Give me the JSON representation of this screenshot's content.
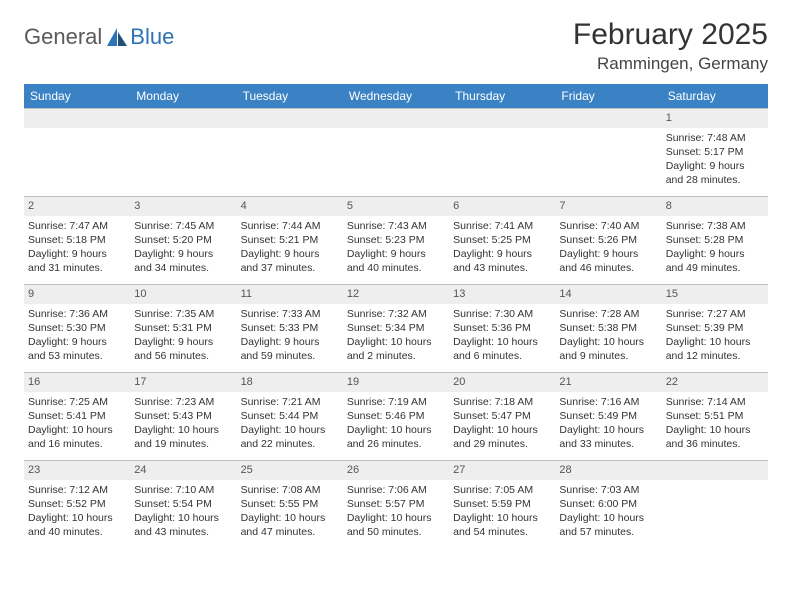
{
  "logo": {
    "general": "General",
    "blue": "Blue"
  },
  "title": "February 2025",
  "location": "Rammingen, Germany",
  "colors": {
    "header_bg": "#3b82c4",
    "header_text": "#ffffff",
    "daynum_bg": "#eeeeee",
    "border": "#bfbfbf",
    "text": "#333333",
    "logo_gray": "#5a5a5a",
    "logo_blue": "#2e74b5"
  },
  "weekdays": [
    "Sunday",
    "Monday",
    "Tuesday",
    "Wednesday",
    "Thursday",
    "Friday",
    "Saturday"
  ],
  "weeks": [
    [
      {
        "n": "",
        "lines": []
      },
      {
        "n": "",
        "lines": []
      },
      {
        "n": "",
        "lines": []
      },
      {
        "n": "",
        "lines": []
      },
      {
        "n": "",
        "lines": []
      },
      {
        "n": "",
        "lines": []
      },
      {
        "n": "1",
        "lines": [
          "Sunrise: 7:48 AM",
          "Sunset: 5:17 PM",
          "Daylight: 9 hours and 28 minutes."
        ]
      }
    ],
    [
      {
        "n": "2",
        "lines": [
          "Sunrise: 7:47 AM",
          "Sunset: 5:18 PM",
          "Daylight: 9 hours and 31 minutes."
        ]
      },
      {
        "n": "3",
        "lines": [
          "Sunrise: 7:45 AM",
          "Sunset: 5:20 PM",
          "Daylight: 9 hours and 34 minutes."
        ]
      },
      {
        "n": "4",
        "lines": [
          "Sunrise: 7:44 AM",
          "Sunset: 5:21 PM",
          "Daylight: 9 hours and 37 minutes."
        ]
      },
      {
        "n": "5",
        "lines": [
          "Sunrise: 7:43 AM",
          "Sunset: 5:23 PM",
          "Daylight: 9 hours and 40 minutes."
        ]
      },
      {
        "n": "6",
        "lines": [
          "Sunrise: 7:41 AM",
          "Sunset: 5:25 PM",
          "Daylight: 9 hours and 43 minutes."
        ]
      },
      {
        "n": "7",
        "lines": [
          "Sunrise: 7:40 AM",
          "Sunset: 5:26 PM",
          "Daylight: 9 hours and 46 minutes."
        ]
      },
      {
        "n": "8",
        "lines": [
          "Sunrise: 7:38 AM",
          "Sunset: 5:28 PM",
          "Daylight: 9 hours and 49 minutes."
        ]
      }
    ],
    [
      {
        "n": "9",
        "lines": [
          "Sunrise: 7:36 AM",
          "Sunset: 5:30 PM",
          "Daylight: 9 hours and 53 minutes."
        ]
      },
      {
        "n": "10",
        "lines": [
          "Sunrise: 7:35 AM",
          "Sunset: 5:31 PM",
          "Daylight: 9 hours and 56 minutes."
        ]
      },
      {
        "n": "11",
        "lines": [
          "Sunrise: 7:33 AM",
          "Sunset: 5:33 PM",
          "Daylight: 9 hours and 59 minutes."
        ]
      },
      {
        "n": "12",
        "lines": [
          "Sunrise: 7:32 AM",
          "Sunset: 5:34 PM",
          "Daylight: 10 hours and 2 minutes."
        ]
      },
      {
        "n": "13",
        "lines": [
          "Sunrise: 7:30 AM",
          "Sunset: 5:36 PM",
          "Daylight: 10 hours and 6 minutes."
        ]
      },
      {
        "n": "14",
        "lines": [
          "Sunrise: 7:28 AM",
          "Sunset: 5:38 PM",
          "Daylight: 10 hours and 9 minutes."
        ]
      },
      {
        "n": "15",
        "lines": [
          "Sunrise: 7:27 AM",
          "Sunset: 5:39 PM",
          "Daylight: 10 hours and 12 minutes."
        ]
      }
    ],
    [
      {
        "n": "16",
        "lines": [
          "Sunrise: 7:25 AM",
          "Sunset: 5:41 PM",
          "Daylight: 10 hours and 16 minutes."
        ]
      },
      {
        "n": "17",
        "lines": [
          "Sunrise: 7:23 AM",
          "Sunset: 5:43 PM",
          "Daylight: 10 hours and 19 minutes."
        ]
      },
      {
        "n": "18",
        "lines": [
          "Sunrise: 7:21 AM",
          "Sunset: 5:44 PM",
          "Daylight: 10 hours and 22 minutes."
        ]
      },
      {
        "n": "19",
        "lines": [
          "Sunrise: 7:19 AM",
          "Sunset: 5:46 PM",
          "Daylight: 10 hours and 26 minutes."
        ]
      },
      {
        "n": "20",
        "lines": [
          "Sunrise: 7:18 AM",
          "Sunset: 5:47 PM",
          "Daylight: 10 hours and 29 minutes."
        ]
      },
      {
        "n": "21",
        "lines": [
          "Sunrise: 7:16 AM",
          "Sunset: 5:49 PM",
          "Daylight: 10 hours and 33 minutes."
        ]
      },
      {
        "n": "22",
        "lines": [
          "Sunrise: 7:14 AM",
          "Sunset: 5:51 PM",
          "Daylight: 10 hours and 36 minutes."
        ]
      }
    ],
    [
      {
        "n": "23",
        "lines": [
          "Sunrise: 7:12 AM",
          "Sunset: 5:52 PM",
          "Daylight: 10 hours and 40 minutes."
        ]
      },
      {
        "n": "24",
        "lines": [
          "Sunrise: 7:10 AM",
          "Sunset: 5:54 PM",
          "Daylight: 10 hours and 43 minutes."
        ]
      },
      {
        "n": "25",
        "lines": [
          "Sunrise: 7:08 AM",
          "Sunset: 5:55 PM",
          "Daylight: 10 hours and 47 minutes."
        ]
      },
      {
        "n": "26",
        "lines": [
          "Sunrise: 7:06 AM",
          "Sunset: 5:57 PM",
          "Daylight: 10 hours and 50 minutes."
        ]
      },
      {
        "n": "27",
        "lines": [
          "Sunrise: 7:05 AM",
          "Sunset: 5:59 PM",
          "Daylight: 10 hours and 54 minutes."
        ]
      },
      {
        "n": "28",
        "lines": [
          "Sunrise: 7:03 AM",
          "Sunset: 6:00 PM",
          "Daylight: 10 hours and 57 minutes."
        ]
      },
      {
        "n": "",
        "lines": []
      }
    ]
  ]
}
